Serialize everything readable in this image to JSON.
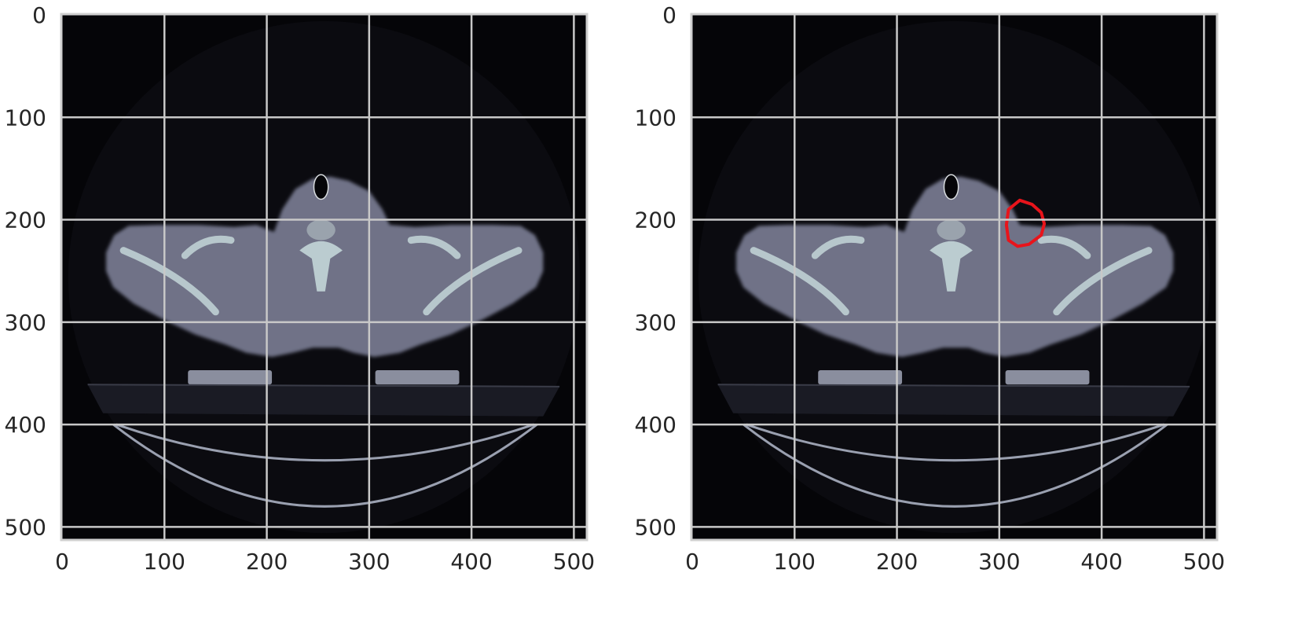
{
  "figure": {
    "panels": [
      {
        "name": "ct-slice",
        "has_contour": false
      },
      {
        "name": "ct-slice-with-contour",
        "has_contour": true,
        "contour_color": "#e8141b"
      }
    ]
  },
  "axes": {
    "x_ticks": [
      "0",
      "100",
      "200",
      "300",
      "400",
      "500"
    ],
    "y_ticks": [
      "0",
      "100",
      "200",
      "300",
      "400",
      "500"
    ],
    "range": [
      0,
      511
    ],
    "grid": true,
    "grid_color": "#c8c8c8",
    "frame_color": "#cfcfcf"
  },
  "colors": {
    "background": "#050508",
    "tissue": "#6f7287",
    "bone": "#c3d6d8",
    "contour": "#e8141b"
  }
}
